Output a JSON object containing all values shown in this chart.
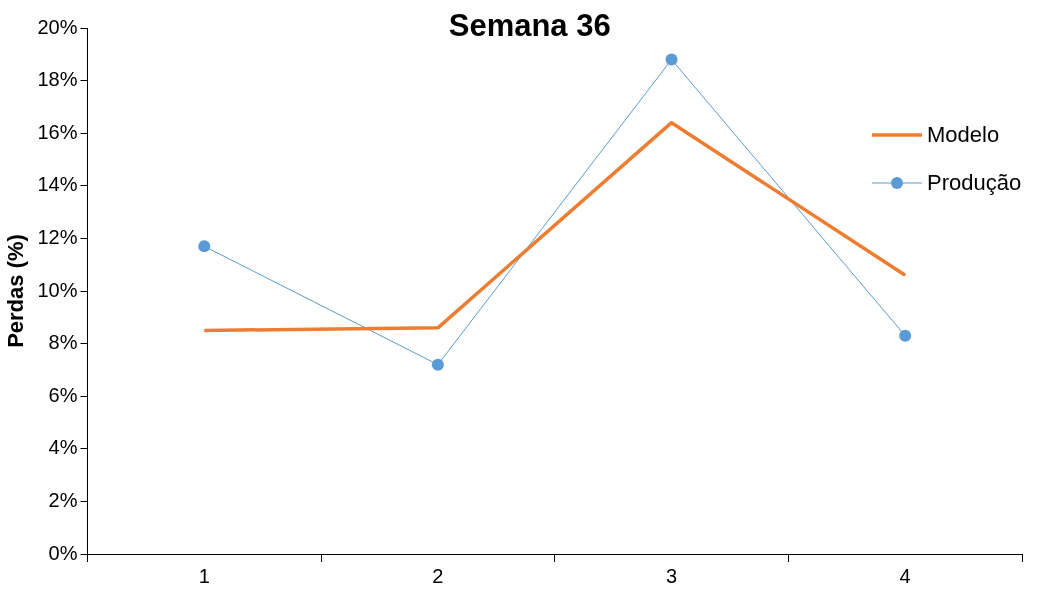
{
  "chart_data": {
    "type": "line",
    "title": "Semana 36",
    "ylabel": "Perdas (%)",
    "categories": [
      "1",
      "2",
      "3",
      "4"
    ],
    "series": [
      {
        "name": "Modelo",
        "color": "#ed7d31",
        "values": [
          8.5,
          8.6,
          16.4,
          10.6
        ],
        "marker": "none",
        "line_style": "solid"
      },
      {
        "name": "Produção",
        "color": "#5b9bd5",
        "values": [
          11.7,
          7.2,
          18.8,
          8.3
        ],
        "marker": "circle",
        "line_style": "solid"
      }
    ],
    "ylim": [
      0,
      20
    ],
    "yticks": [
      {
        "value": 0,
        "label": "0%"
      },
      {
        "value": 2,
        "label": "2%"
      },
      {
        "value": 4,
        "label": "4%"
      },
      {
        "value": 6,
        "label": "6%"
      },
      {
        "value": 8,
        "label": "8%"
      },
      {
        "value": 10,
        "label": "10%"
      },
      {
        "value": 12,
        "label": "12%"
      },
      {
        "value": 14,
        "label": "14%"
      },
      {
        "value": 16,
        "label": "16%"
      },
      {
        "value": 18,
        "label": "18%"
      },
      {
        "value": 20,
        "label": "20%"
      }
    ],
    "grid": false,
    "legend": "right"
  }
}
